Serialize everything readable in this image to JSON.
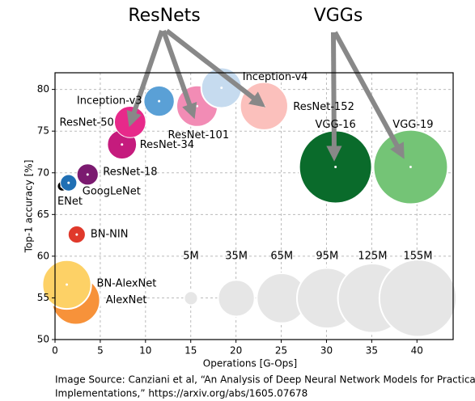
{
  "chart_data": {
    "type": "scatter",
    "annotations": [
      "ResNets",
      "VGGs"
    ],
    "x_label": "Operations [G-Ops]",
    "y_label": "Top-1 accuracy [%]",
    "xlim": [
      0,
      44
    ],
    "ylim": [
      50,
      82
    ],
    "xticks": [
      0,
      5,
      10,
      15,
      20,
      25,
      30,
      35,
      40
    ],
    "yticks": [
      50,
      55,
      60,
      65,
      70,
      75,
      80
    ],
    "grid": true,
    "points": [
      {
        "name": "AlexNet",
        "x": 2.3,
        "y": 54.7,
        "size": 61,
        "color": "#f7923a"
      },
      {
        "name": "BN-AlexNet",
        "x": 1.3,
        "y": 56.6,
        "size": 62,
        "color": "#fdd166"
      },
      {
        "name": "BN-NIN",
        "x": 2.4,
        "y": 62.6,
        "size": 7.6,
        "color": "#e0392b"
      },
      {
        "name": "ENet",
        "x": 0.8,
        "y": 68.4,
        "size": 0.37,
        "color": "#000000"
      },
      {
        "name": "GoogLeNet",
        "x": 1.5,
        "y": 68.8,
        "size": 7,
        "color": "#1f6fb4"
      },
      {
        "name": "ResNet-18",
        "x": 3.6,
        "y": 69.8,
        "size": 11.7,
        "color": "#7b1a70"
      },
      {
        "name": "ResNet-34",
        "x": 7.4,
        "y": 73.4,
        "size": 21.8,
        "color": "#c51b7d"
      },
      {
        "name": "ResNet-50",
        "x": 8.3,
        "y": 76.1,
        "size": 25.6,
        "color": "#e7298a"
      },
      {
        "name": "Inception-v3",
        "x": 11.5,
        "y": 78.6,
        "size": 23.8,
        "color": "#5aa0d6"
      },
      {
        "name": "ResNet-101",
        "x": 15.7,
        "y": 78.0,
        "size": 44.5,
        "color": "#f28cb5"
      },
      {
        "name": "Inception-v4",
        "x": 18.4,
        "y": 80.2,
        "size": 42.7,
        "color": "#c6dbef"
      },
      {
        "name": "ResNet-152",
        "x": 23.1,
        "y": 78.0,
        "size": 60,
        "color": "#fbc0bc"
      },
      {
        "name": "VGG-16",
        "x": 31.0,
        "y": 70.7,
        "size": 138,
        "color": "#0a6b2b"
      },
      {
        "name": "VGG-19",
        "x": 39.3,
        "y": 70.7,
        "size": 144,
        "color": "#74c476"
      }
    ],
    "size_legend": [
      {
        "value": 5,
        "label": "5M"
      },
      {
        "value": 35,
        "label": "35M"
      },
      {
        "value": 65,
        "label": "65M"
      },
      {
        "value": 95,
        "label": "95M"
      },
      {
        "value": 125,
        "label": "125M"
      },
      {
        "value": 155,
        "label": "155M"
      }
    ],
    "size_legend_color": "#e6e6e6",
    "source": [
      "Image Source:  Canziani et al, “An Analysis of Deep Neural Network Models for Practical",
      "Implementations,” https://arxiv.org/abs/1605.07678"
    ]
  }
}
